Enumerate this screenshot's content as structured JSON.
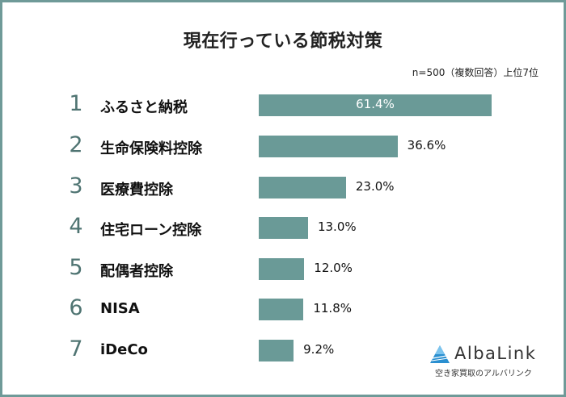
{
  "title": "現在行っている節税対策",
  "note": "n=500（複数回答）上位7位",
  "colors": {
    "bar": "#6a9a97",
    "rank": "#4f7472",
    "frame": "#6f9a98",
    "logo_accent": "#2a8fd0"
  },
  "items": [
    {
      "rank": "1",
      "label": "ふるさと納税",
      "value_label": "61.4%"
    },
    {
      "rank": "2",
      "label": "生命保険料控除",
      "value_label": "36.6%"
    },
    {
      "rank": "3",
      "label": "医療費控除",
      "value_label": "23.0%"
    },
    {
      "rank": "4",
      "label": "住宅ローン控除",
      "value_label": "13.0%"
    },
    {
      "rank": "5",
      "label": "配偶者控除",
      "value_label": "12.0%"
    },
    {
      "rank": "6",
      "label": "NISA",
      "value_label": "11.8%"
    },
    {
      "rank": "7",
      "label": "iDeCo",
      "value_label": "9.2%"
    }
  ],
  "logo": {
    "name": "AlbaLink",
    "tagline": "空き家買取のアルバリンク"
  },
  "chart_data": {
    "type": "bar",
    "orientation": "horizontal",
    "title": "現在行っている節税対策",
    "subtitle": "n=500（複数回答）上位7位",
    "categories": [
      "ふるさと納税",
      "生命保険料控除",
      "医療費控除",
      "住宅ローン控除",
      "配偶者控除",
      "NISA",
      "iDeCo"
    ],
    "values": [
      61.4,
      36.6,
      23.0,
      13.0,
      12.0,
      11.8,
      9.2
    ],
    "unit": "%",
    "xlabel": "",
    "ylabel": "",
    "grid": false,
    "legend": "none"
  }
}
